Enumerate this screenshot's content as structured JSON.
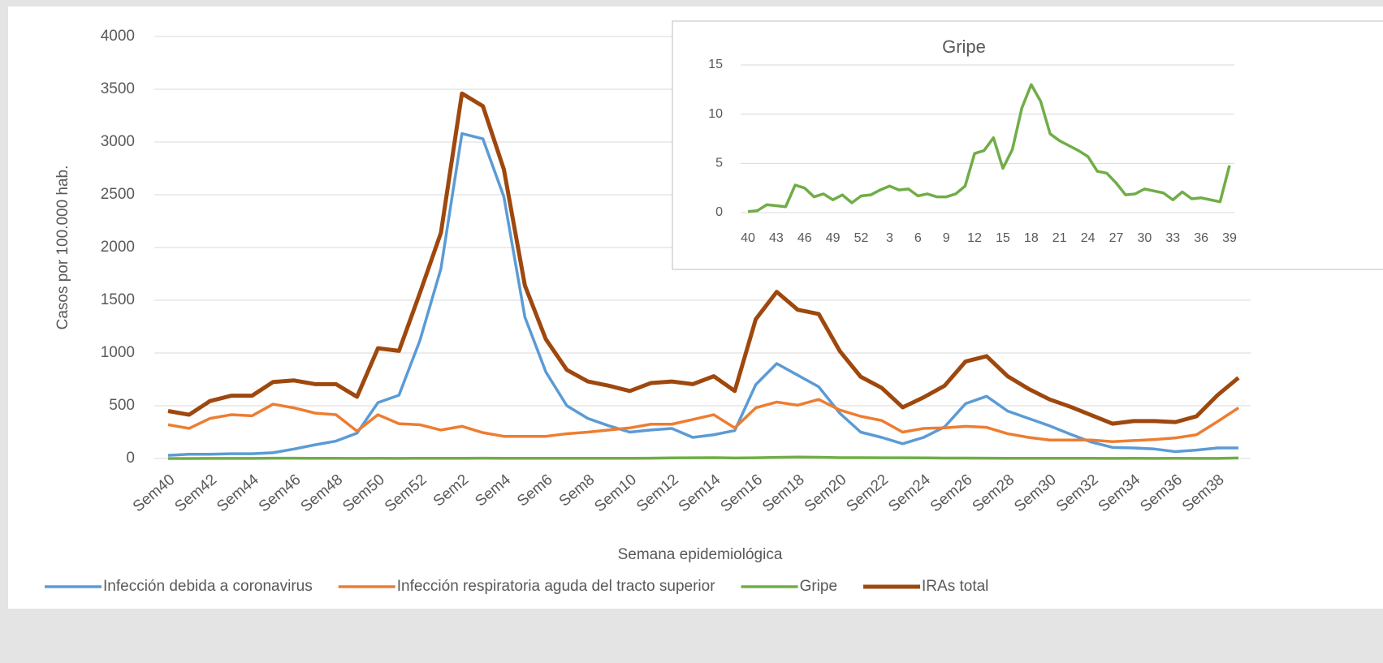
{
  "chart_data": [
    {
      "type": "line",
      "y_label": "Casos por 100.000 hab.",
      "x_label": "Semana epidemiológica",
      "categories": [
        "Sem40",
        null,
        "Sem42",
        null,
        "Sem44",
        null,
        "Sem46",
        null,
        "Sem48",
        null,
        "Sem50",
        null,
        "Sem52",
        null,
        "Sem2",
        null,
        "Sem4",
        null,
        "Sem6",
        null,
        "Sem8",
        null,
        "Sem10",
        null,
        "Sem12",
        null,
        "Sem14",
        null,
        "Sem16",
        null,
        "Sem18",
        null,
        "Sem20",
        null,
        "Sem22",
        null,
        "Sem24",
        null,
        "Sem26",
        null,
        "Sem28",
        null,
        "Sem30",
        null,
        "Sem32",
        null,
        "Sem34",
        null,
        "Sem36",
        null,
        "Sem38",
        null
      ],
      "series": [
        {
          "name": "Infección debida a coronavirus",
          "color": "#5b9bd5",
          "values": [
            30,
            40,
            40,
            45,
            45,
            55,
            90,
            130,
            165,
            240,
            530,
            600,
            1120,
            1800,
            3080,
            3030,
            2480,
            1340,
            820,
            500,
            380,
            310,
            250,
            270,
            285,
            200,
            225,
            265,
            700,
            900,
            790,
            680,
            430,
            250,
            200,
            140,
            200,
            300,
            520,
            590,
            450,
            380,
            310,
            230,
            155,
            105,
            100,
            90,
            65,
            80,
            100,
            100
          ]
        },
        {
          "name": "Infección respiratoria aguda del tracto superior",
          "color": "#ed7d31",
          "values": [
            320,
            285,
            380,
            415,
            405,
            515,
            480,
            430,
            415,
            260,
            415,
            330,
            320,
            270,
            305,
            245,
            210,
            210,
            210,
            235,
            250,
            270,
            290,
            325,
            325,
            370,
            415,
            290,
            480,
            535,
            505,
            560,
            460,
            400,
            360,
            250,
            285,
            290,
            305,
            295,
            235,
            200,
            175,
            175,
            175,
            160,
            170,
            180,
            195,
            225,
            350,
            480
          ]
        },
        {
          "name": "Gripe",
          "color": "#70ad47",
          "values": [
            0.1,
            0.2,
            0.8,
            0.7,
            0.6,
            2.8,
            2.5,
            1.6,
            1.9,
            1.3,
            1.8,
            1.0,
            1.7,
            1.8,
            2.3,
            2.7,
            2.3,
            2.4,
            1.7,
            1.9,
            1.6,
            1.6,
            1.9,
            2.7,
            6.0,
            6.3,
            7.6,
            4.5,
            6.4,
            10.6,
            13.0,
            11.3,
            8.0,
            7.3,
            6.8,
            6.3,
            5.7,
            4.2,
            4.0,
            3.0,
            1.8,
            1.9,
            2.4,
            2.2,
            2.0,
            1.3,
            2.1,
            1.4,
            1.5,
            1.3,
            1.1,
            4.8
          ]
        },
        {
          "name": "IRAs total",
          "color": "#9e480e",
          "values": [
            450,
            415,
            545,
            595,
            595,
            725,
            740,
            705,
            705,
            585,
            1045,
            1020,
            1570,
            2140,
            3460,
            3340,
            2740,
            1640,
            1130,
            840,
            730,
            690,
            640,
            715,
            730,
            705,
            780,
            640,
            1320,
            1580,
            1410,
            1370,
            1020,
            775,
            670,
            485,
            580,
            690,
            920,
            970,
            780,
            660,
            560,
            490,
            410,
            330,
            355,
            355,
            345,
            400,
            600,
            765
          ]
        }
      ],
      "ylim": [
        0,
        4000
      ],
      "yticks": [
        0,
        500,
        1000,
        1500,
        2000,
        2500,
        3000,
        3500,
        4000
      ],
      "grid": true,
      "legend": "bottom"
    },
    {
      "type": "line",
      "title": "Gripe",
      "categories": [
        "40",
        null,
        null,
        "43",
        null,
        null,
        "46",
        null,
        null,
        "49",
        null,
        null,
        "52",
        null,
        null,
        "3",
        null,
        null,
        "6",
        null,
        null,
        "9",
        null,
        null,
        "12",
        null,
        null,
        "15",
        null,
        null,
        "18",
        null,
        null,
        "21",
        null,
        null,
        "24",
        null,
        null,
        "27",
        null,
        null,
        "30",
        null,
        null,
        "33",
        null,
        null,
        "36",
        null,
        null,
        "39"
      ],
      "color": "#70ad47",
      "values": [
        0.1,
        0.2,
        0.8,
        0.7,
        0.6,
        2.8,
        2.5,
        1.6,
        1.9,
        1.3,
        1.8,
        1.0,
        1.7,
        1.8,
        2.3,
        2.7,
        2.3,
        2.4,
        1.7,
        1.9,
        1.6,
        1.6,
        1.9,
        2.7,
        6.0,
        6.3,
        7.6,
        4.5,
        6.4,
        10.6,
        13.0,
        11.3,
        8.0,
        7.3,
        6.8,
        6.3,
        5.7,
        4.2,
        4.0,
        3.0,
        1.8,
        1.9,
        2.4,
        2.2,
        2.0,
        1.3,
        2.1,
        1.4,
        1.5,
        1.3,
        1.1,
        4.8
      ],
      "ylim": [
        0,
        15
      ],
      "yticks": [
        0,
        5,
        10,
        15
      ],
      "grid": true
    }
  ]
}
